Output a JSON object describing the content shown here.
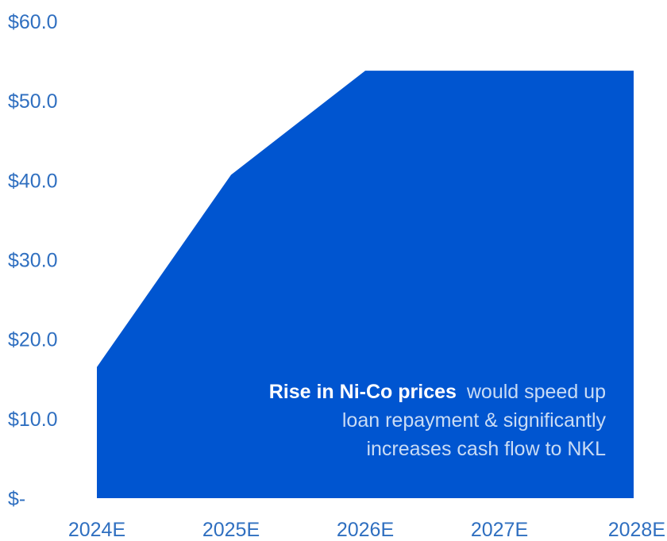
{
  "chart_data": {
    "type": "area",
    "title": "",
    "xlabel": "",
    "ylabel": "",
    "categories": [
      "2024E",
      "2025E",
      "2026E",
      "2027E",
      "2028E"
    ],
    "series": [
      {
        "values": [
          16.5,
          40.7,
          53.8,
          53.8,
          53.8
        ]
      }
    ],
    "ylim": [
      0,
      60
    ],
    "y_ticks": [
      0,
      10,
      20,
      30,
      40,
      50,
      60
    ],
    "y_tick_labels": [
      "$-",
      "$10.0",
      "$20.0",
      "$30.0",
      "$40.0",
      "$50.0",
      "$60.0"
    ],
    "grid": false,
    "legend": "none",
    "colors": {
      "area": "#0055d0",
      "axis_text": "#2f6fc0",
      "annotation_bold": "#ffffff",
      "annotation_text": "#c9dcf5"
    },
    "annotation": {
      "bold": "Rise in Ni-Co prices",
      "line1_rest": "would speed up",
      "line2": "loan repayment & significantly",
      "line3": "increases cash flow to NKL"
    }
  }
}
